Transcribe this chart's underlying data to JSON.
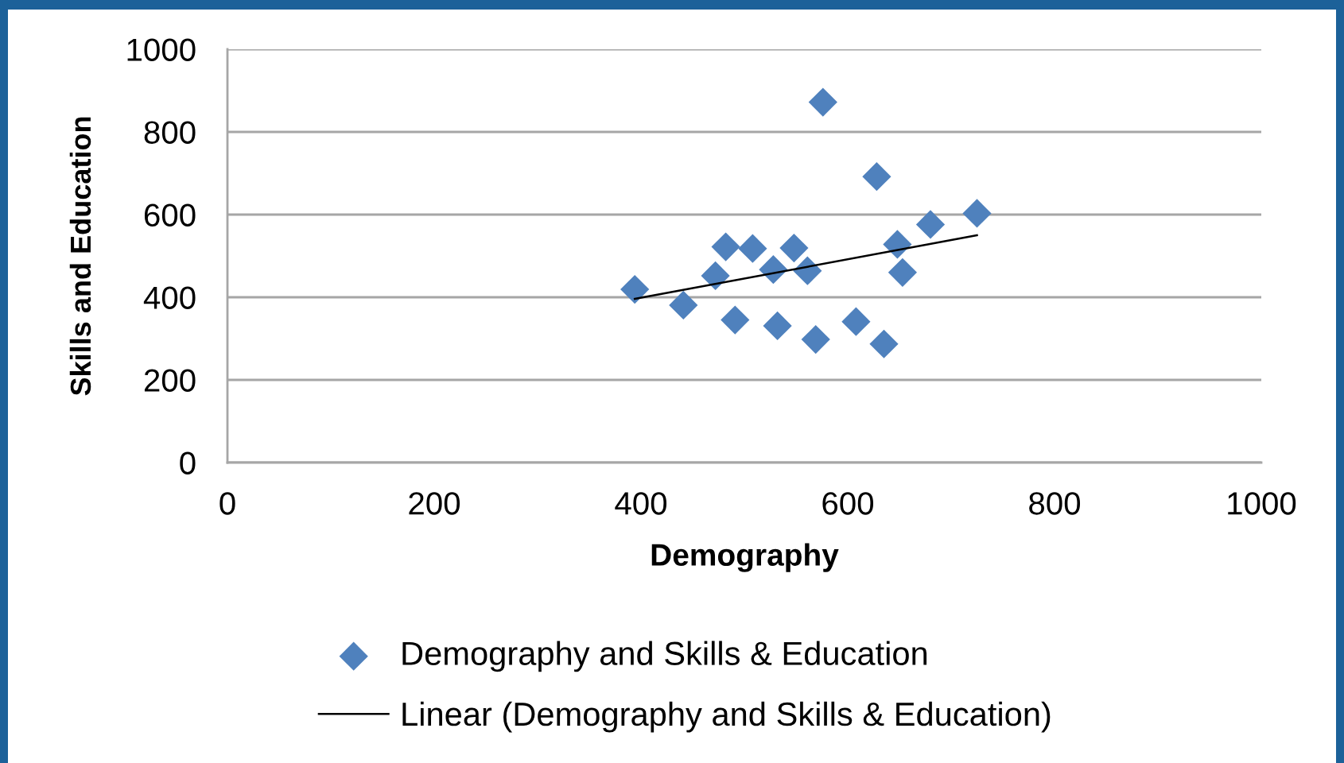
{
  "chart_data": {
    "type": "scatter",
    "xlabel": "Demography",
    "ylabel": "Skills and Education",
    "xlim": [
      0,
      1000
    ],
    "ylim": [
      0,
      1000
    ],
    "xticks": [
      0,
      200,
      400,
      600,
      800,
      1000
    ],
    "yticks": [
      0,
      200,
      400,
      600,
      800,
      1000
    ],
    "grid": "y",
    "legend": "bottom",
    "marker": "diamond",
    "series": [
      {
        "name": "Demography and Skills & Education",
        "color": "#4f81bd",
        "x": [
          394,
          441,
          472,
          482,
          508,
          491,
          528,
          548,
          532,
          561,
          576,
          569,
          608,
          628,
          635,
          648,
          653,
          680,
          725
        ],
        "values": [
          419,
          381,
          452,
          522,
          518,
          345,
          467,
          519,
          331,
          464,
          872,
          298,
          341,
          692,
          287,
          528,
          460,
          576,
          603
        ]
      },
      {
        "name": "Linear (Demography and Skills & Education)",
        "type": "line",
        "color": "#000000",
        "marker": "none",
        "line_style": "solid",
        "x": [
          394,
          725
        ],
        "values": [
          396,
          550
        ]
      }
    ]
  }
}
